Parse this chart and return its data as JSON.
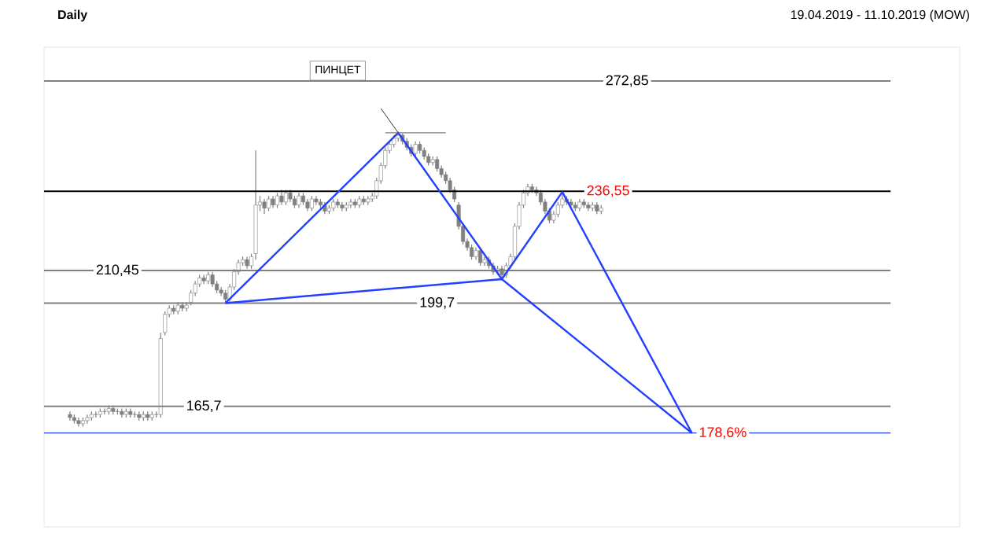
{
  "chart_data": {
    "type": "candlestick",
    "title": "Daily",
    "subtitle": "19.04.2019 - 11.10.2019 (MOW)",
    "categories": [
      null,
      null,
      null,
      null,
      null,
      null,
      null,
      null,
      null,
      null,
      null,
      null,
      null,
      null,
      null,
      null,
      null,
      null,
      null,
      null,
      null,
      null,
      null,
      null,
      null,
      null,
      null,
      null,
      null,
      null,
      null,
      null,
      null,
      null,
      null,
      null,
      null,
      null,
      null,
      null,
      null,
      null,
      null,
      null,
      null,
      null,
      null,
      null,
      null,
      null,
      null,
      null,
      null,
      null,
      null,
      null,
      null,
      null,
      null,
      null,
      null,
      null,
      null,
      null,
      null,
      null,
      null,
      null,
      null,
      null,
      null,
      null,
      null,
      null,
      null,
      null,
      null,
      null,
      null,
      null,
      null,
      null,
      null,
      null,
      null,
      null,
      null,
      null,
      null,
      null,
      null,
      null,
      null,
      null,
      null,
      null,
      null,
      null,
      null,
      null,
      null,
      null,
      null,
      null,
      null,
      null,
      null,
      null,
      null,
      null,
      null,
      null,
      null,
      null,
      null,
      null,
      null,
      null,
      null,
      null,
      null,
      null,
      null,
      null,
      null,
      null,
      null,
      null,
      null,
      null,
      null,
      null,
      null,
      null,
      null,
      null,
      null,
      null,
      null,
      null,
      null,
      null,
      null,
      null,
      null
    ],
    "color": "#808080",
    "ohlc": [
      [
        163,
        164,
        161,
        162
      ],
      [
        162,
        163,
        160,
        161
      ],
      [
        161,
        162,
        159,
        160
      ],
      [
        160,
        162,
        159,
        161
      ],
      [
        161,
        163,
        160,
        162
      ],
      [
        162,
        164,
        161,
        163
      ],
      [
        163,
        164,
        162,
        163
      ],
      [
        163,
        165,
        162,
        164
      ],
      [
        164,
        165,
        163,
        164
      ],
      [
        164,
        166,
        163,
        165
      ],
      [
        165,
        166,
        163,
        164
      ],
      [
        164,
        165,
        163,
        164
      ],
      [
        164,
        165,
        162,
        163
      ],
      [
        163,
        165,
        162,
        164
      ],
      [
        164,
        165,
        162,
        163
      ],
      [
        163,
        164,
        162,
        163
      ],
      [
        163,
        164,
        161,
        162
      ],
      [
        162,
        164,
        161,
        163
      ],
      [
        163,
        164,
        161,
        162
      ],
      [
        162,
        164,
        161,
        163
      ],
      [
        163,
        164,
        162,
        163
      ],
      [
        163,
        190,
        162,
        188
      ],
      [
        190,
        197,
        189,
        196
      ],
      [
        196,
        199,
        195,
        198
      ],
      [
        198,
        199,
        196,
        197
      ],
      [
        197,
        200,
        196,
        199
      ],
      [
        199,
        200,
        197,
        198
      ],
      [
        198,
        200,
        197,
        199
      ],
      [
        200,
        204,
        199,
        203
      ],
      [
        203,
        207,
        202,
        206
      ],
      [
        206,
        209,
        205,
        208
      ],
      [
        208,
        209,
        206,
        207
      ],
      [
        207,
        210,
        206,
        209
      ],
      [
        209,
        210,
        205,
        206
      ],
      [
        206,
        207,
        203,
        204
      ],
      [
        204,
        205,
        202,
        203
      ],
      [
        203,
        204,
        199.7,
        201
      ],
      [
        201,
        206,
        200,
        205
      ],
      [
        205,
        211,
        204,
        210
      ],
      [
        210,
        214,
        209,
        213
      ],
      [
        213,
        215,
        212,
        214
      ],
      [
        214,
        215,
        211,
        212
      ],
      [
        212,
        216,
        211,
        215
      ],
      [
        216,
        250,
        214,
        232
      ],
      [
        232,
        235,
        230,
        233
      ],
      [
        233,
        234,
        229,
        231
      ],
      [
        231,
        235,
        230,
        234
      ],
      [
        234,
        235,
        231,
        232
      ],
      [
        232,
        236,
        231,
        235
      ],
      [
        235,
        237,
        232,
        233
      ],
      [
        233,
        237,
        232,
        236
      ],
      [
        236,
        237,
        233,
        234
      ],
      [
        234,
        235,
        231,
        232
      ],
      [
        232,
        236,
        231,
        235
      ],
      [
        235,
        236,
        232,
        233
      ],
      [
        233,
        234,
        230,
        231
      ],
      [
        231,
        235,
        230,
        234
      ],
      [
        234,
        235,
        232,
        233
      ],
      [
        233,
        234,
        231,
        232
      ],
      [
        232,
        233,
        229,
        230
      ],
      [
        230,
        232,
        229,
        231
      ],
      [
        231,
        234,
        230,
        233
      ],
      [
        233,
        234,
        231,
        232
      ],
      [
        232,
        233,
        230,
        231
      ],
      [
        231,
        233,
        230,
        232
      ],
      [
        232,
        234,
        231,
        233
      ],
      [
        233,
        234,
        231,
        232
      ],
      [
        232,
        235,
        231,
        234
      ],
      [
        234,
        235,
        232,
        233
      ],
      [
        233,
        235,
        232,
        234
      ],
      [
        234,
        236,
        233,
        235
      ],
      [
        235,
        241,
        234,
        240
      ],
      [
        240,
        246,
        239,
        245
      ],
      [
        245,
        251,
        244,
        250
      ],
      [
        250,
        253,
        249,
        252
      ],
      [
        252,
        255,
        251,
        254
      ],
      [
        254,
        255.8,
        253,
        255
      ],
      [
        255,
        255.5,
        252,
        253
      ],
      [
        253,
        254,
        250,
        251
      ],
      [
        251,
        252,
        248,
        249
      ],
      [
        249,
        253,
        248,
        252
      ],
      [
        252,
        253,
        249,
        250
      ],
      [
        250,
        251,
        247,
        248
      ],
      [
        248,
        249,
        245,
        246
      ],
      [
        246,
        248,
        245,
        247
      ],
      [
        247,
        248,
        243,
        244
      ],
      [
        244,
        245,
        241,
        242
      ],
      [
        242,
        243,
        239,
        240
      ],
      [
        240,
        241,
        236,
        237
      ],
      [
        237,
        238,
        233,
        234
      ],
      [
        232,
        233,
        224,
        225
      ],
      [
        225,
        226,
        219,
        220
      ],
      [
        220,
        221,
        217,
        218
      ],
      [
        218,
        219,
        214,
        215
      ],
      [
        215,
        218,
        214,
        217
      ],
      [
        217,
        218,
        212,
        213
      ],
      [
        213,
        215,
        212,
        214
      ],
      [
        214,
        215,
        211,
        212
      ],
      [
        212,
        213,
        209,
        210
      ],
      [
        210,
        212,
        209,
        211
      ],
      [
        211,
        212,
        207.6,
        209
      ],
      [
        209,
        213,
        208,
        212
      ],
      [
        212,
        216,
        211,
        215
      ],
      [
        215,
        226,
        214,
        225
      ],
      [
        225,
        233,
        224,
        232
      ],
      [
        232,
        237,
        231,
        236
      ],
      [
        236,
        239,
        235,
        238
      ],
      [
        238,
        239,
        236,
        237
      ],
      [
        237,
        238,
        235,
        236
      ],
      [
        236,
        237,
        232,
        233
      ],
      [
        233,
        234,
        229,
        230
      ],
      [
        230,
        231,
        226,
        227
      ],
      [
        227,
        230,
        226,
        229
      ],
      [
        229,
        233,
        228,
        232
      ],
      [
        232,
        236,
        231,
        234
      ],
      [
        234,
        235,
        232,
        233
      ],
      [
        233,
        234,
        231,
        232
      ],
      [
        232,
        233,
        230,
        231
      ],
      [
        231,
        234,
        230,
        233
      ],
      [
        233,
        234,
        231,
        232
      ],
      [
        232,
        233,
        230,
        231
      ],
      [
        231,
        233,
        230,
        232
      ],
      [
        232,
        233,
        229,
        230
      ],
      [
        230,
        232,
        229,
        231
      ],
      null,
      null,
      null,
      null,
      null,
      null,
      null,
      null,
      null,
      null,
      null,
      null,
      null,
      null,
      null,
      null,
      null,
      null,
      null,
      null,
      null
    ],
    "series": [
      {
        "type": "line",
        "color": "#2340ff",
        "values": [
          null,
          null,
          null,
          null,
          null,
          null,
          null,
          null,
          null,
          null,
          null,
          null,
          null,
          null,
          null,
          null,
          null,
          null,
          null,
          null,
          null,
          null,
          null,
          null,
          null,
          null,
          null,
          null,
          null,
          null,
          null,
          null,
          null,
          null,
          null,
          null,
          199.7,
          null,
          null,
          null,
          null,
          null,
          null,
          null,
          null,
          null,
          null,
          null,
          null,
          null,
          null,
          null,
          null,
          null,
          null,
          null,
          null,
          null,
          null,
          null,
          null,
          null,
          null,
          null,
          null,
          null,
          null,
          null,
          null,
          null,
          null,
          null,
          null,
          null,
          null,
          null,
          255.8,
          null,
          null,
          null,
          null,
          null,
          null,
          null,
          null,
          null,
          null,
          null,
          null,
          null,
          null,
          null,
          null,
          null,
          null,
          null,
          null,
          null,
          null,
          null,
          207.6,
          null,
          null,
          null,
          null,
          null,
          null,
          null,
          null,
          null,
          null,
          null,
          null,
          null,
          236.3,
          null,
          null,
          null,
          null,
          null,
          null,
          null,
          null,
          null,
          null,
          null,
          null,
          null,
          null,
          null,
          null,
          null,
          null,
          null,
          null,
          null,
          null,
          null,
          null,
          null,
          null,
          null,
          null,
          null,
          156.9
        ]
      },
      {
        "type": "line",
        "color": "#2340ff",
        "values": [
          null,
          null,
          null,
          null,
          null,
          null,
          null,
          null,
          null,
          null,
          null,
          null,
          null,
          null,
          null,
          null,
          null,
          null,
          null,
          null,
          null,
          null,
          null,
          null,
          null,
          null,
          null,
          null,
          null,
          null,
          null,
          null,
          null,
          null,
          null,
          null,
          199.7,
          null,
          null,
          null,
          null,
          null,
          null,
          null,
          null,
          null,
          null,
          null,
          null,
          null,
          null,
          null,
          null,
          null,
          null,
          null,
          null,
          null,
          null,
          null,
          null,
          null,
          null,
          null,
          null,
          null,
          null,
          null,
          null,
          null,
          null,
          null,
          null,
          null,
          null,
          null,
          null,
          null,
          null,
          null,
          null,
          null,
          null,
          null,
          null,
          null,
          null,
          null,
          null,
          null,
          null,
          null,
          null,
          null,
          null,
          null,
          null,
          null,
          null,
          null,
          207.6,
          null,
          null,
          null,
          null,
          null,
          null,
          null,
          null,
          null,
          null,
          null,
          null,
          null,
          null,
          null,
          null,
          null,
          null,
          null,
          null,
          null,
          null,
          null,
          null,
          null,
          null,
          null,
          null,
          null,
          null,
          null,
          null,
          null,
          null,
          null,
          null,
          null,
          null,
          null,
          null,
          null,
          null,
          null,
          156.9
        ]
      }
    ],
    "ylim": [
      126,
      284
    ],
    "tick_labels": false,
    "ref_lines": [
      {
        "axis": "y",
        "value": 272.85,
        "label": "272,85",
        "color": "#808080"
      },
      {
        "axis": "y",
        "value": 236.55,
        "label": "236,55",
        "color": "#000000"
      },
      {
        "axis": "y",
        "value": 210.45,
        "label": "210,45",
        "color": "#808080"
      },
      {
        "axis": "y",
        "value": 199.7,
        "label": "199,7",
        "color": "#808080"
      },
      {
        "axis": "y",
        "value": 165.7,
        "label": "165,7",
        "color": "#808080"
      },
      {
        "axis": "y",
        "value": 156.9,
        "color": "#2340ff"
      }
    ],
    "annotations": [
      "ПИНЦЕТ",
      "178,6%"
    ]
  }
}
